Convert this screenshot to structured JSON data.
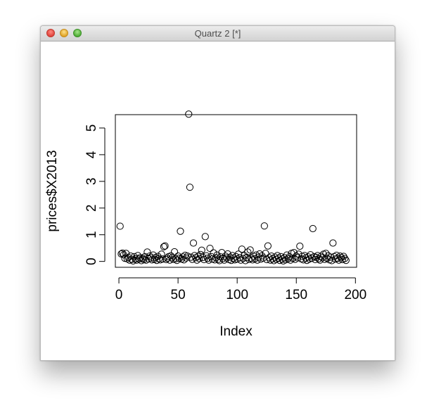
{
  "window": {
    "title": "Quartz 2 [*]"
  },
  "chart_data": {
    "type": "scatter",
    "xlabel": "Index",
    "ylabel": "prices$X2013",
    "xticks": [
      0,
      50,
      100,
      150,
      200
    ],
    "yticks": [
      0,
      1,
      2,
      3,
      4,
      5
    ],
    "xlim": [
      -3,
      201
    ],
    "ylim": [
      -0.22,
      5.5
    ],
    "points": [
      [
        1,
        1.32
      ],
      [
        2,
        0.28
      ],
      [
        3,
        0.31
      ],
      [
        4,
        0.25
      ],
      [
        5,
        0.12
      ],
      [
        6,
        0.3
      ],
      [
        7,
        0.1
      ],
      [
        8,
        0.15
      ],
      [
        9,
        0.05
      ],
      [
        10,
        0.2
      ],
      [
        11,
        0.08
      ],
      [
        12,
        0.02
      ],
      [
        13,
        0.18
      ],
      [
        14,
        0.1
      ],
      [
        15,
        0.05
      ],
      [
        16,
        0.22
      ],
      [
        17,
        0.09
      ],
      [
        18,
        0.14
      ],
      [
        19,
        0.03
      ],
      [
        20,
        0.12
      ],
      [
        21,
        0.07
      ],
      [
        22,
        0.18
      ],
      [
        23,
        0.05
      ],
      [
        24,
        0.35
      ],
      [
        25,
        0.1
      ],
      [
        26,
        0.2
      ],
      [
        27,
        0.13
      ],
      [
        28,
        0.06
      ],
      [
        29,
        0.24
      ],
      [
        30,
        0.08
      ],
      [
        31,
        0.15
      ],
      [
        32,
        0.04
      ],
      [
        33,
        0.19
      ],
      [
        34,
        0.11
      ],
      [
        35,
        0.06
      ],
      [
        36,
        0.27
      ],
      [
        37,
        0.09
      ],
      [
        38,
        0.55
      ],
      [
        39,
        0.58
      ],
      [
        40,
        0.07
      ],
      [
        41,
        0.12
      ],
      [
        42,
        0.18
      ],
      [
        43,
        0.05
      ],
      [
        44,
        0.21
      ],
      [
        45,
        0.14
      ],
      [
        46,
        0.08
      ],
      [
        47,
        0.36
      ],
      [
        48,
        0.1
      ],
      [
        49,
        0.04
      ],
      [
        50,
        0.2
      ],
      [
        51,
        0.12
      ],
      [
        52,
        1.13
      ],
      [
        53,
        0.09
      ],
      [
        54,
        0.17
      ],
      [
        55,
        0.06
      ],
      [
        56,
        0.23
      ],
      [
        57,
        0.13
      ],
      [
        58,
        0.2
      ],
      [
        59,
        5.52
      ],
      [
        60,
        2.78
      ],
      [
        61,
        0.16
      ],
      [
        62,
        0.08
      ],
      [
        63,
        0.69
      ],
      [
        64,
        0.22
      ],
      [
        65,
        0.14
      ],
      [
        66,
        0.05
      ],
      [
        67,
        0.19
      ],
      [
        68,
        0.11
      ],
      [
        69,
        0.26
      ],
      [
        70,
        0.42
      ],
      [
        71,
        0.15
      ],
      [
        72,
        0.07
      ],
      [
        73,
        0.93
      ],
      [
        74,
        0.21
      ],
      [
        75,
        0.12
      ],
      [
        76,
        0.05
      ],
      [
        77,
        0.49
      ],
      [
        78,
        0.18
      ],
      [
        79,
        0.09
      ],
      [
        80,
        0.32
      ],
      [
        81,
        0.06
      ],
      [
        82,
        0.14
      ],
      [
        83,
        0.24
      ],
      [
        84,
        0.08
      ],
      [
        85,
        0.03
      ],
      [
        86,
        0.17
      ],
      [
        87,
        0.33
      ],
      [
        88,
        0.11
      ],
      [
        89,
        0.05
      ],
      [
        90,
        0.2
      ],
      [
        91,
        0.13
      ],
      [
        92,
        0.28
      ],
      [
        93,
        0.07
      ],
      [
        94,
        0.16
      ],
      [
        95,
        0.04
      ],
      [
        96,
        0.22
      ],
      [
        97,
        0.12
      ],
      [
        98,
        0.06
      ],
      [
        99,
        0.18
      ],
      [
        100,
        0.09
      ],
      [
        101,
        0.27
      ],
      [
        102,
        0.14
      ],
      [
        103,
        0.05
      ],
      [
        104,
        0.46
      ],
      [
        105,
        0.11
      ],
      [
        106,
        0.22
      ],
      [
        107,
        0.03
      ],
      [
        108,
        0.15
      ],
      [
        109,
        0.35
      ],
      [
        110,
        0.08
      ],
      [
        111,
        0.43
      ],
      [
        112,
        0.12
      ],
      [
        113,
        0.06
      ],
      [
        114,
        0.19
      ],
      [
        115,
        0.1
      ],
      [
        116,
        0.24
      ],
      [
        117,
        0.05
      ],
      [
        118,
        0.16
      ],
      [
        119,
        0.28
      ],
      [
        120,
        0.09
      ],
      [
        121,
        0.21
      ],
      [
        122,
        0.13
      ],
      [
        123,
        1.33
      ],
      [
        124,
        0.3
      ],
      [
        125,
        0.07
      ],
      [
        126,
        0.58
      ],
      [
        127,
        0.14
      ],
      [
        128,
        0.05
      ],
      [
        129,
        0.2
      ],
      [
        130,
        0.1
      ],
      [
        131,
        0.03
      ],
      [
        132,
        0.16
      ],
      [
        133,
        0.08
      ],
      [
        134,
        0.22
      ],
      [
        135,
        0.12
      ],
      [
        136,
        0.04
      ],
      [
        137,
        0.18
      ],
      [
        138,
        0.09
      ],
      [
        139,
        0.02
      ],
      [
        140,
        0.14
      ],
      [
        141,
        0.06
      ],
      [
        142,
        0.24
      ],
      [
        143,
        0.1
      ],
      [
        144,
        0.17
      ],
      [
        145,
        0.05
      ],
      [
        146,
        0.3
      ],
      [
        147,
        0.12
      ],
      [
        148,
        0.33
      ],
      [
        149,
        0.08
      ],
      [
        150,
        0.2
      ],
      [
        151,
        0.14
      ],
      [
        152,
        0.27
      ],
      [
        153,
        0.57
      ],
      [
        154,
        0.1
      ],
      [
        155,
        0.19
      ],
      [
        156,
        0.06
      ],
      [
        157,
        0.22
      ],
      [
        158,
        0.13
      ],
      [
        159,
        0.04
      ],
      [
        160,
        0.17
      ],
      [
        161,
        0.09
      ],
      [
        162,
        0.25
      ],
      [
        163,
        0.12
      ],
      [
        164,
        1.23
      ],
      [
        165,
        0.18
      ],
      [
        166,
        0.07
      ],
      [
        167,
        0.15
      ],
      [
        168,
        0.22
      ],
      [
        169,
        0.1
      ],
      [
        170,
        0.05
      ],
      [
        171,
        0.19
      ],
      [
        172,
        0.14
      ],
      [
        173,
        0.27
      ],
      [
        174,
        0.08
      ],
      [
        175,
        0.3
      ],
      [
        176,
        0.12
      ],
      [
        177,
        0.21
      ],
      [
        178,
        0.06
      ],
      [
        179,
        0.16
      ],
      [
        180,
        0.03
      ],
      [
        181,
        0.69
      ],
      [
        182,
        0.18
      ],
      [
        183,
        0.09
      ],
      [
        184,
        0.23
      ],
      [
        185,
        0.12
      ],
      [
        186,
        0.05
      ],
      [
        187,
        0.2
      ],
      [
        188,
        0.14
      ],
      [
        189,
        0.07
      ],
      [
        190,
        0.19
      ],
      [
        191,
        0.11
      ],
      [
        192,
        0.04
      ]
    ]
  }
}
